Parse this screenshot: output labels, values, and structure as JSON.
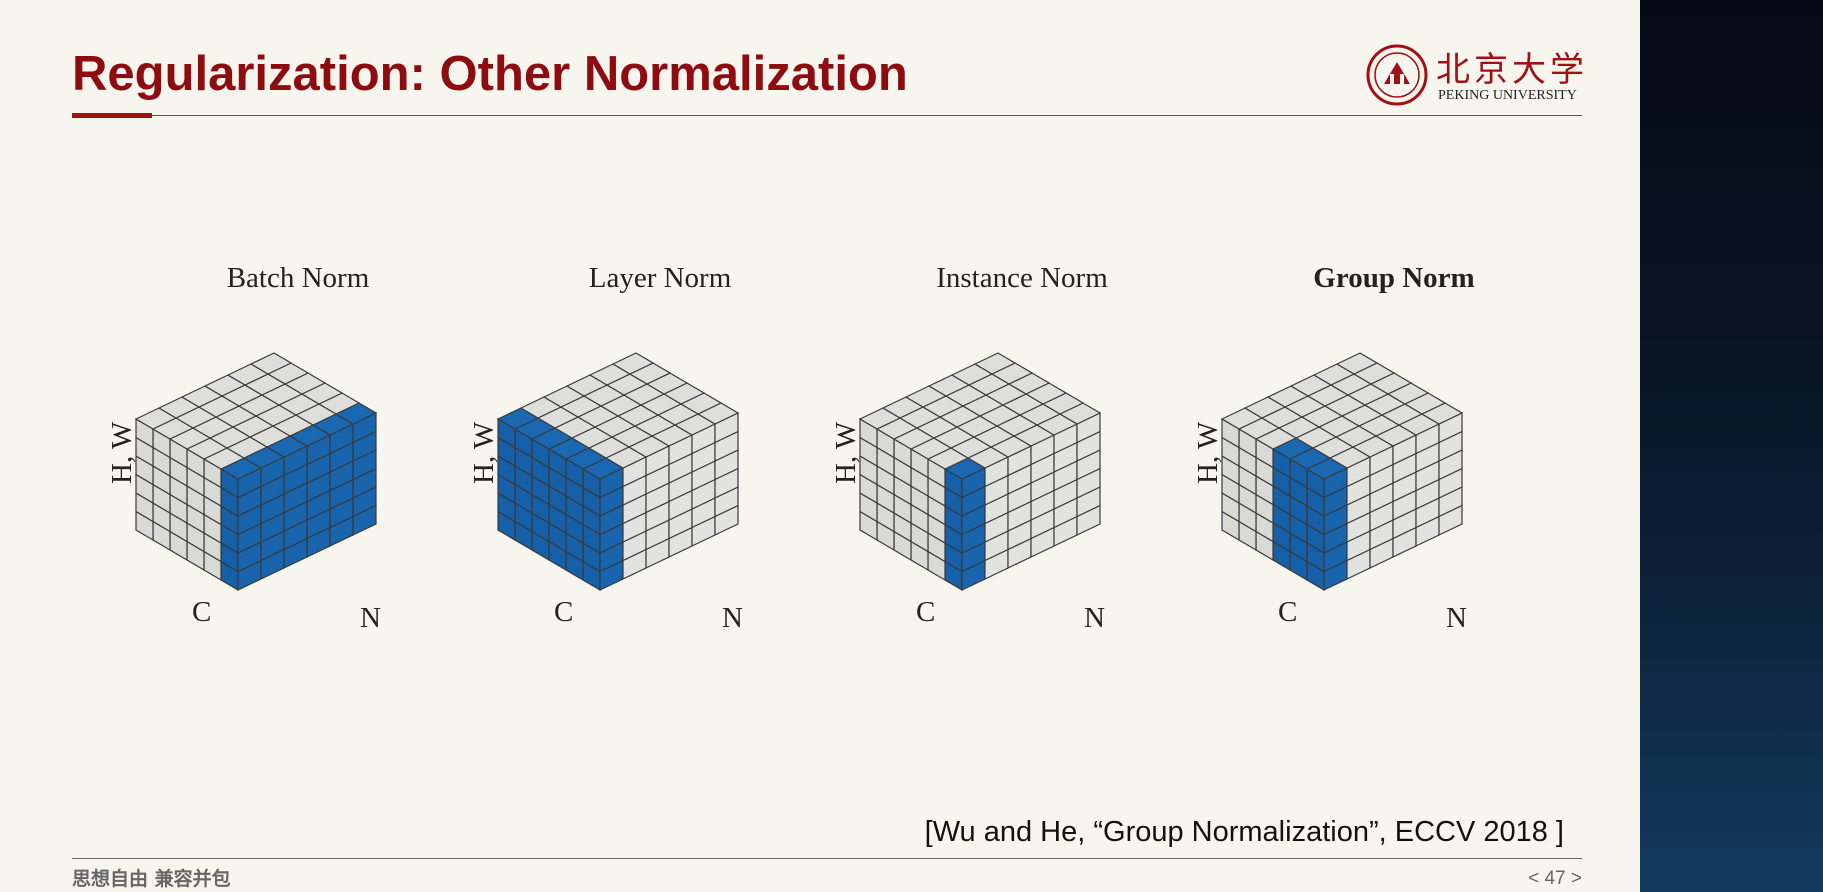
{
  "slide": {
    "title": "Regularization: Other Normalization",
    "logo_cn": "北京大学",
    "logo_en": "PEKING UNIVERSITY",
    "citation": "[Wu and He, “Group Normalization”, ECCV 2018 ]",
    "footer_motto": "思想自由 兼容并包",
    "page_prefix": "< ",
    "page_number": "47",
    "page_suffix": " >"
  },
  "colors": {
    "title": "#8e0c10",
    "highlight_blue": "#1560a8",
    "cube_gray": "#d9d9d6"
  },
  "cubes": [
    {
      "label": "Batch Norm",
      "bold": false,
      "axes": {
        "hw": "H, W",
        "c": "C",
        "n": "N"
      }
    },
    {
      "label": "Layer Norm",
      "bold": false,
      "axes": {
        "hw": "H, W",
        "c": "C",
        "n": "N"
      }
    },
    {
      "label": "Instance Norm",
      "bold": false,
      "axes": {
        "hw": "H, W",
        "c": "C",
        "n": "N"
      }
    },
    {
      "label": "Group Norm",
      "bold": true,
      "axes": {
        "hw": "H, W",
        "c": "C",
        "n": "N"
      }
    }
  ]
}
